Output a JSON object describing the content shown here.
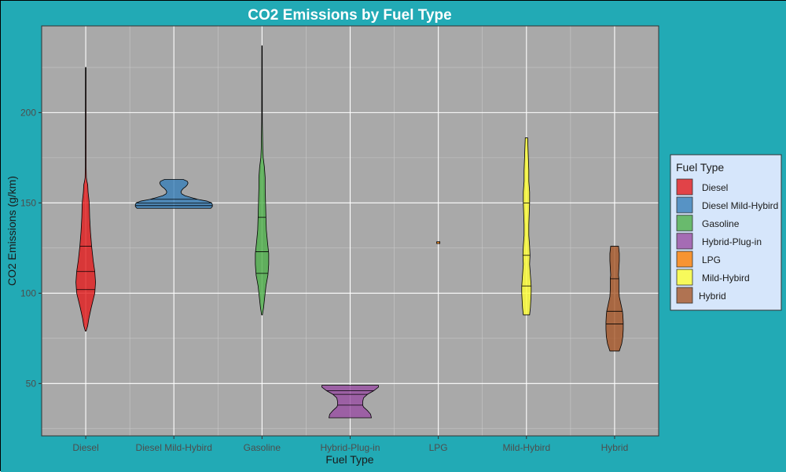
{
  "background_color": "#22aab5",
  "panel_color": "#a9a9a9",
  "legend_bg_color": "#d6e6fb",
  "chart_data": {
    "type": "violin",
    "title": "CO2 Emissions by Fuel Type",
    "xlabel": "Fuel Type",
    "ylabel": "CO2 Emissions (g/km)",
    "ylim": [
      21,
      248
    ],
    "yticks": [
      50,
      100,
      150,
      200
    ],
    "grid": true,
    "legend": {
      "title": "Fuel Type",
      "position": "right"
    },
    "categories": [
      "Diesel",
      "Diesel Mild-Hybird",
      "Gasoline",
      "Hybrid-Plug-in",
      "LPG",
      "Mild-Hybird",
      "Hybrid"
    ],
    "legend_labels": [
      "Diesel",
      "Diesel Mild-Hybird",
      "Gasoline",
      "Hybrid-Plug-in",
      "LPG",
      "Mild-Hybird",
      "Hybrid"
    ],
    "series": [
      {
        "category": "Diesel",
        "color": "#e41a1c",
        "min": 79,
        "max": 225,
        "quantiles": [
          102,
          112,
          126
        ],
        "profile": [
          [
            79,
            0.5
          ],
          [
            82,
            2.5
          ],
          [
            86,
            4
          ],
          [
            92,
            7
          ],
          [
            100,
            11.5
          ],
          [
            106,
            12.5
          ],
          [
            112,
            11.5
          ],
          [
            118,
            9.5
          ],
          [
            126,
            7.5
          ],
          [
            134,
            6
          ],
          [
            142,
            5
          ],
          [
            150,
            4.5
          ],
          [
            156,
            3
          ],
          [
            160,
            2.5
          ],
          [
            162,
            1.5
          ],
          [
            164,
            0.8
          ],
          [
            170,
            0.5
          ],
          [
            225,
            0.4
          ]
        ]
      },
      {
        "category": "Diesel Mild-Hybird",
        "color": "#377eb8",
        "min": 147,
        "max": 163,
        "quantiles": [
          148.5,
          150,
          152
        ],
        "profile": [
          [
            147,
            47
          ],
          [
            148,
            49
          ],
          [
            149,
            49
          ],
          [
            150,
            48
          ],
          [
            151,
            42
          ],
          [
            152,
            30
          ],
          [
            153,
            22
          ],
          [
            154,
            14
          ],
          [
            155,
            10
          ],
          [
            156,
            9
          ],
          [
            157,
            10
          ],
          [
            158,
            12
          ],
          [
            159,
            15
          ],
          [
            160,
            17
          ],
          [
            161,
            18
          ],
          [
            162,
            17
          ],
          [
            163,
            12
          ]
        ]
      },
      {
        "category": "Gasoline",
        "color": "#4daf4a",
        "min": 88,
        "max": 237,
        "quantiles": [
          111,
          123,
          142
        ],
        "profile": [
          [
            88,
            0.5
          ],
          [
            92,
            2
          ],
          [
            98,
            3.5
          ],
          [
            104,
            5
          ],
          [
            110,
            7.5
          ],
          [
            116,
            8.5
          ],
          [
            122,
            8.5
          ],
          [
            128,
            7
          ],
          [
            135,
            5.5
          ],
          [
            142,
            5
          ],
          [
            150,
            4.5
          ],
          [
            158,
            4
          ],
          [
            164,
            4
          ],
          [
            170,
            3
          ],
          [
            175,
            1.5
          ],
          [
            180,
            1
          ],
          [
            190,
            0.6
          ],
          [
            195,
            0.4
          ],
          [
            237,
            0.3
          ]
        ]
      },
      {
        "category": "Hybrid-Plug-in",
        "color": "#984ea3",
        "min": 31,
        "max": 49,
        "quantiles": [
          38,
          44,
          46
        ],
        "profile": [
          [
            31,
            27
          ],
          [
            33,
            26
          ],
          [
            35,
            22
          ],
          [
            37,
            17
          ],
          [
            38,
            16
          ],
          [
            40,
            16
          ],
          [
            42,
            17
          ],
          [
            44,
            22
          ],
          [
            46,
            30
          ],
          [
            48,
            36
          ],
          [
            49,
            36
          ]
        ]
      },
      {
        "category": "LPG",
        "color": "#ff7f00",
        "min": 127.5,
        "max": 128.5,
        "quantiles": [],
        "profile": [
          [
            127.5,
            2
          ],
          [
            128.5,
            2
          ]
        ]
      },
      {
        "category": "Mild-Hybird",
        "color": "#ffff33",
        "min": 88,
        "max": 186,
        "quantiles": [
          104,
          121,
          150
        ],
        "profile": [
          [
            88,
            4
          ],
          [
            92,
            5
          ],
          [
            96,
            5.5
          ],
          [
            100,
            6
          ],
          [
            104,
            6
          ],
          [
            110,
            5
          ],
          [
            116,
            4
          ],
          [
            121,
            4.5
          ],
          [
            126,
            4
          ],
          [
            132,
            3
          ],
          [
            138,
            3
          ],
          [
            144,
            3.5
          ],
          [
            150,
            4
          ],
          [
            156,
            4
          ],
          [
            162,
            3
          ],
          [
            168,
            3
          ],
          [
            174,
            2.5
          ],
          [
            180,
            2
          ],
          [
            186,
            1.5
          ]
        ]
      },
      {
        "category": "Hybrid",
        "color": "#a65628",
        "min": 68,
        "max": 126,
        "quantiles": [
          83,
          90,
          108
        ],
        "profile": [
          [
            68,
            6
          ],
          [
            72,
            9
          ],
          [
            76,
            10.5
          ],
          [
            80,
            11
          ],
          [
            84,
            11
          ],
          [
            88,
            10.5
          ],
          [
            90,
            10
          ],
          [
            94,
            8
          ],
          [
            98,
            6
          ],
          [
            102,
            5.5
          ],
          [
            106,
            5.5
          ],
          [
            108,
            5.5
          ],
          [
            110,
            5
          ],
          [
            114,
            5.5
          ],
          [
            118,
            6
          ],
          [
            122,
            6
          ],
          [
            126,
            5
          ]
        ]
      }
    ]
  }
}
